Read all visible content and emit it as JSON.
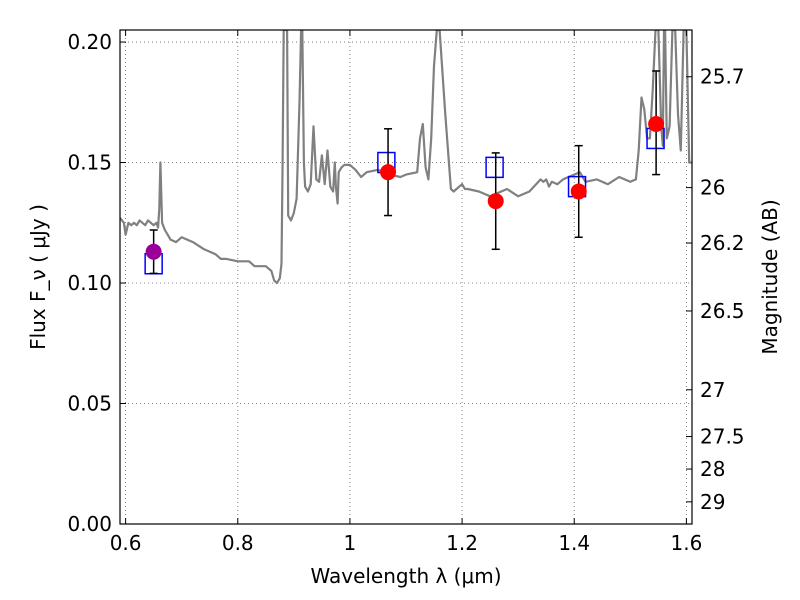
{
  "chart_data": {
    "type": "scatter",
    "xlabel": "Wavelength  λ (μm)",
    "ylabel": "Flux  F_ν  ( μJy )",
    "ylabel_right": "Magnitude (AB)",
    "xlim": [
      0.59,
      1.61
    ],
    "ylim": [
      0.0,
      0.205
    ],
    "grid": true,
    "x_ticks": [
      {
        "value": 0.6,
        "label": "0.6"
      },
      {
        "value": 0.8,
        "label": "0.8"
      },
      {
        "value": 1.0,
        "label": "1"
      },
      {
        "value": 1.2,
        "label": "1.2"
      },
      {
        "value": 1.4,
        "label": "1.4"
      },
      {
        "value": 1.6,
        "label": "1.6"
      }
    ],
    "y_ticks": [
      {
        "value": 0.0,
        "label": "0.00"
      },
      {
        "value": 0.05,
        "label": "0.05"
      },
      {
        "value": 0.1,
        "label": "0.10"
      },
      {
        "value": 0.15,
        "label": "0.15"
      },
      {
        "value": 0.2,
        "label": "0.20"
      }
    ],
    "mag_ticks": [
      {
        "flux": 0.1856,
        "label": "25.7"
      },
      {
        "flux": 0.1396,
        "label": "26"
      },
      {
        "flux": 0.1166,
        "label": "26.2"
      },
      {
        "flux": 0.0884,
        "label": "26.5"
      },
      {
        "flux": 0.0557,
        "label": "27"
      },
      {
        "flux": 0.0363,
        "label": "27.5"
      },
      {
        "flux": 0.0228,
        "label": "28"
      },
      {
        "flux": 0.0092,
        "label": "29"
      }
    ],
    "model_spectrum": {
      "color": "#808080",
      "x": [
        0.59,
        0.597,
        0.6,
        0.605,
        0.61,
        0.615,
        0.62,
        0.625,
        0.63,
        0.635,
        0.64,
        0.645,
        0.65,
        0.655,
        0.658,
        0.66,
        0.662,
        0.665,
        0.67,
        0.68,
        0.69,
        0.7,
        0.72,
        0.74,
        0.76,
        0.77,
        0.78,
        0.8,
        0.82,
        0.83,
        0.85,
        0.86,
        0.865,
        0.87,
        0.875,
        0.878,
        0.88,
        0.882,
        0.884,
        0.886,
        0.888,
        0.89,
        0.895,
        0.9,
        0.905,
        0.91,
        0.913,
        0.915,
        0.918,
        0.92,
        0.925,
        0.93,
        0.935,
        0.94,
        0.945,
        0.95,
        0.955,
        0.96,
        0.965,
        0.97,
        0.973,
        0.975,
        0.978,
        0.98,
        0.985,
        0.99,
        1.0,
        1.01,
        1.02,
        1.03,
        1.05,
        1.07,
        1.09,
        1.1,
        1.12,
        1.125,
        1.13,
        1.135,
        1.14,
        1.145,
        1.15,
        1.155,
        1.16,
        1.17,
        1.18,
        1.185,
        1.19,
        1.195,
        1.2,
        1.205,
        1.21,
        1.23,
        1.25,
        1.27,
        1.28,
        1.3,
        1.32,
        1.34,
        1.345,
        1.35,
        1.355,
        1.36,
        1.37,
        1.38,
        1.4,
        1.41,
        1.42,
        1.44,
        1.46,
        1.48,
        1.5,
        1.51,
        1.515,
        1.52,
        1.525,
        1.53,
        1.535,
        1.54,
        1.545,
        1.55,
        1.555,
        1.558,
        1.56,
        1.562,
        1.565,
        1.57,
        1.575,
        1.58,
        1.585,
        1.59,
        1.595,
        1.6,
        1.605,
        1.61
      ],
      "y": [
        0.127,
        0.125,
        0.12,
        0.125,
        0.124,
        0.125,
        0.124,
        0.126,
        0.125,
        0.124,
        0.126,
        0.125,
        0.124,
        0.125,
        0.123,
        0.131,
        0.15,
        0.125,
        0.122,
        0.118,
        0.117,
        0.119,
        0.117,
        0.114,
        0.112,
        0.11,
        0.11,
        0.109,
        0.109,
        0.107,
        0.107,
        0.105,
        0.101,
        0.1,
        0.102,
        0.108,
        0.15,
        0.205,
        0.205,
        0.205,
        0.205,
        0.128,
        0.126,
        0.129,
        0.135,
        0.175,
        0.205,
        0.205,
        0.15,
        0.14,
        0.138,
        0.141,
        0.165,
        0.143,
        0.142,
        0.153,
        0.141,
        0.155,
        0.14,
        0.138,
        0.15,
        0.14,
        0.133,
        0.146,
        0.148,
        0.149,
        0.149,
        0.147,
        0.144,
        0.146,
        0.147,
        0.145,
        0.144,
        0.145,
        0.146,
        0.16,
        0.166,
        0.148,
        0.143,
        0.16,
        0.19,
        0.205,
        0.205,
        0.17,
        0.139,
        0.138,
        0.139,
        0.14,
        0.141,
        0.139,
        0.139,
        0.138,
        0.136,
        0.138,
        0.139,
        0.136,
        0.138,
        0.143,
        0.142,
        0.143,
        0.14,
        0.142,
        0.141,
        0.143,
        0.145,
        0.146,
        0.142,
        0.143,
        0.141,
        0.144,
        0.142,
        0.143,
        0.155,
        0.177,
        0.172,
        0.16,
        0.16,
        0.18,
        0.205,
        0.205,
        0.165,
        0.157,
        0.205,
        0.205,
        0.16,
        0.165,
        0.205,
        0.205,
        0.17,
        0.155,
        0.205,
        0.205,
        0.15,
        0.15
      ]
    },
    "series": [
      {
        "marker": "open-square",
        "color": "#0000ff",
        "x": [
          0.65,
          1.065,
          1.258,
          1.405,
          1.545
        ],
        "y": [
          0.108,
          0.15,
          0.148,
          0.14,
          0.16
        ]
      },
      {
        "marker": "filled-circle",
        "color": "#990099",
        "x": [
          0.65
        ],
        "y": [
          0.113
        ],
        "err_low": [
          0.104
        ],
        "err_high": [
          0.122
        ]
      },
      {
        "marker": "filled-circle",
        "color": "#ff0000",
        "x": [
          1.068,
          1.26,
          1.408,
          1.546
        ],
        "y": [
          0.146,
          0.134,
          0.138,
          0.166
        ],
        "err_low": [
          0.128,
          0.114,
          0.119,
          0.145
        ],
        "err_high": [
          0.164,
          0.154,
          0.157,
          0.188
        ]
      }
    ]
  }
}
